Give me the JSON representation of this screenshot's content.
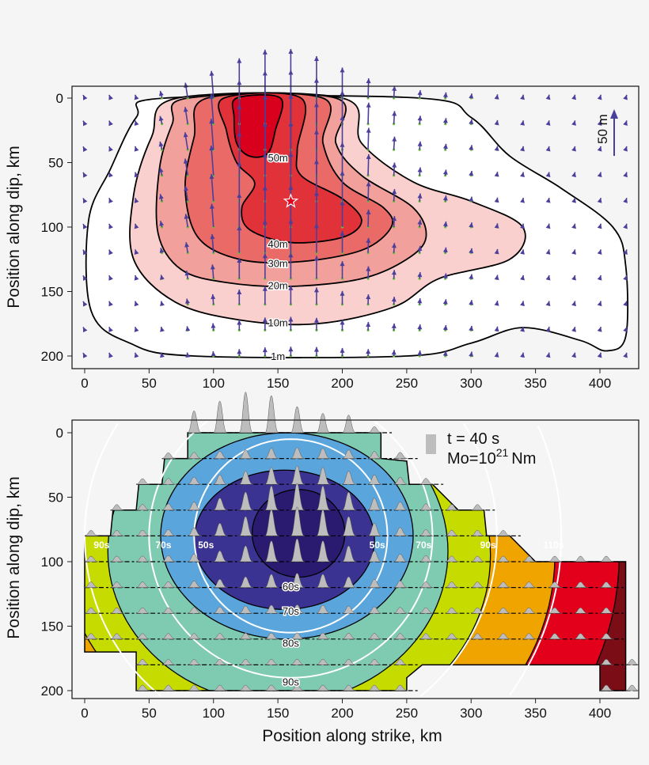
{
  "chart_data": [
    {
      "type": "contour",
      "panel": "top",
      "xlabel": "",
      "ylabel": "Position along dip, km",
      "xlim": [
        -10,
        420
      ],
      "ylim": [
        210,
        -10
      ],
      "xticks": [
        "0",
        "50",
        "100",
        "150",
        "200",
        "250",
        "300",
        "350",
        "400"
      ],
      "yticks": [
        "0",
        "50",
        "100",
        "150",
        "200"
      ],
      "contour_levels": [
        "1m",
        "10m",
        "20m",
        "30m",
        "40m",
        "50m"
      ],
      "contour_colors": [
        "#ffffff",
        "#fad0ce",
        "#f2a09b",
        "#e96a66",
        "#e1323a",
        "#d8001c"
      ],
      "vector_color": "#4b3f9c",
      "grid_point_color": "#6cbf3a",
      "hypocenter": {
        "x": 160,
        "y": 80,
        "marker": "star"
      },
      "scale_bar_label": "50 m",
      "grid": false
    },
    {
      "type": "contour",
      "panel": "bottom",
      "xlabel": "Position along strike, km",
      "ylabel": "Position along dip, km",
      "xlim": [
        -10,
        420
      ],
      "ylim": [
        210,
        -10
      ],
      "xticks": [
        "0",
        "50",
        "100",
        "150",
        "200",
        "250",
        "300",
        "350",
        "400"
      ],
      "yticks": [
        "0",
        "50",
        "100",
        "150",
        "200"
      ],
      "contour_labels": [
        "60s",
        "70s",
        "80s",
        "90s"
      ],
      "circle_labels": [
        "50s",
        "70s",
        "90s",
        "110s"
      ],
      "band_colors": [
        "#2b1b70",
        "#3b3391",
        "#5aa5dc",
        "#7fcbb1",
        "#c6dc00",
        "#f0a400",
        "#e2001b",
        "#7b0d17"
      ],
      "legend": {
        "time": "t = 40 s",
        "moment_prefix": "Mo=10",
        "moment_exp": "21",
        "moment_unit": "Nm"
      },
      "grid": false
    }
  ]
}
